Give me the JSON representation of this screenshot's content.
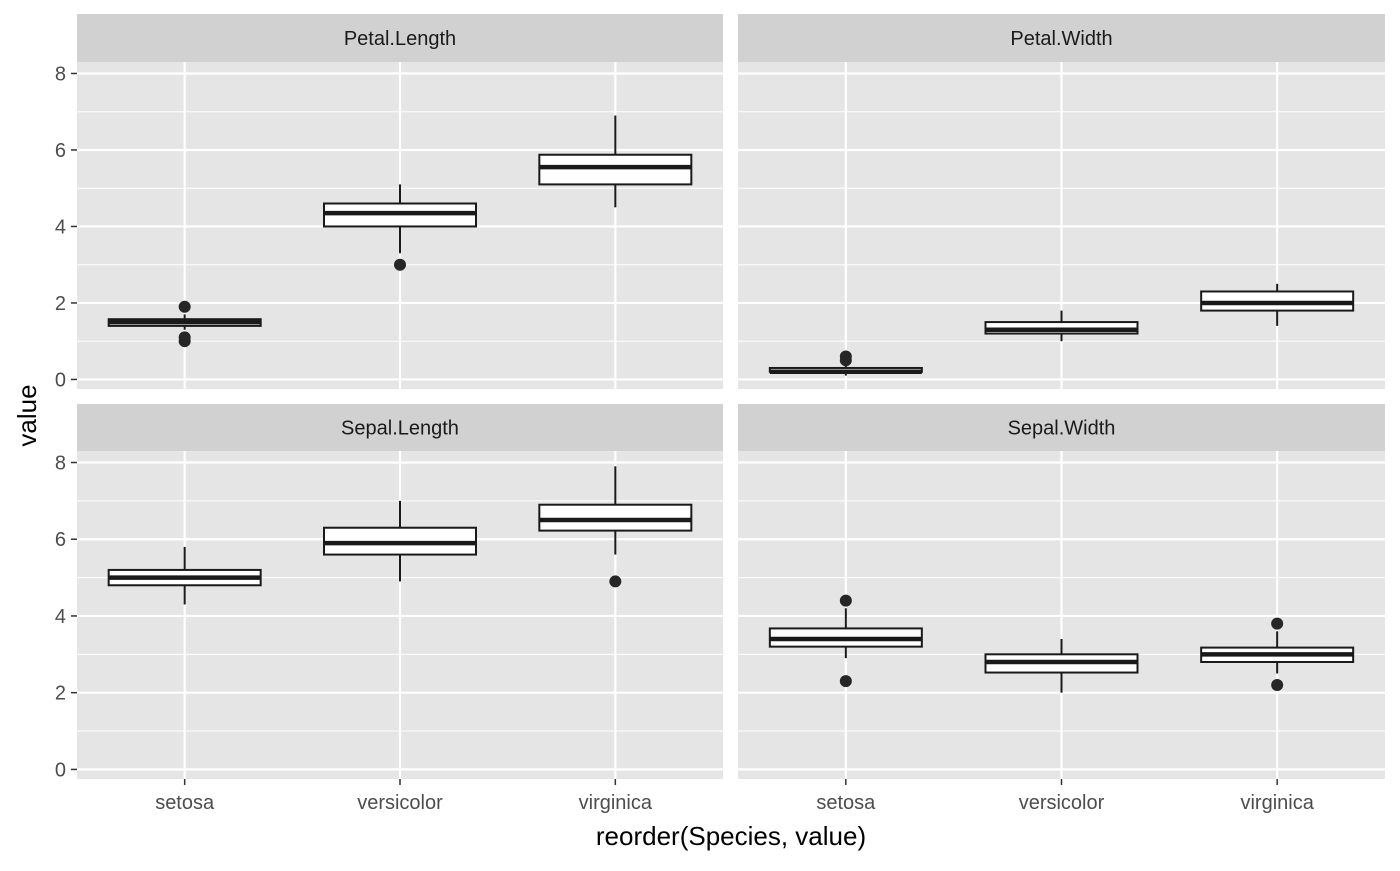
{
  "chart_data": {
    "type": "boxplot",
    "facet_layout": "2x2 grid, shared axes",
    "xlabel": "reorder(Species, value)",
    "ylabel": "value",
    "categories": [
      "setosa",
      "versicolor",
      "virginica"
    ],
    "ylim": [
      -0.25,
      8.3
    ],
    "yticks": [
      0,
      2,
      4,
      6,
      8
    ],
    "grid": true,
    "colors": {
      "panel_background": "#e5e5e5",
      "strip_background": "#d1d1d1",
      "grid": "#ffffff",
      "box_fill": "#ffffff",
      "box_line": "#1a1a1a",
      "outlier": "#262626"
    },
    "panels": [
      {
        "facet": "Petal.Length",
        "boxes": [
          {
            "category": "setosa",
            "lower_whisker": 1.3,
            "q1": 1.4,
            "median": 1.5,
            "q3": 1.575,
            "upper_whisker": 1.7,
            "outliers": [
              1.0,
              1.1,
              1.9
            ]
          },
          {
            "category": "versicolor",
            "lower_whisker": 3.3,
            "q1": 4.0,
            "median": 4.35,
            "q3": 4.6,
            "upper_whisker": 5.1,
            "outliers": [
              3.0
            ]
          },
          {
            "category": "virginica",
            "lower_whisker": 4.5,
            "q1": 5.1,
            "median": 5.55,
            "q3": 5.875,
            "upper_whisker": 6.9,
            "outliers": []
          }
        ]
      },
      {
        "facet": "Petal.Width",
        "boxes": [
          {
            "category": "setosa",
            "lower_whisker": 0.1,
            "q1": 0.2,
            "median": 0.2,
            "q3": 0.3,
            "upper_whisker": 0.4,
            "outliers": [
              0.5,
              0.6
            ]
          },
          {
            "category": "versicolor",
            "lower_whisker": 1.0,
            "q1": 1.2,
            "median": 1.3,
            "q3": 1.5,
            "upper_whisker": 1.8,
            "outliers": []
          },
          {
            "category": "virginica",
            "lower_whisker": 1.4,
            "q1": 1.8,
            "median": 2.0,
            "q3": 2.3,
            "upper_whisker": 2.5,
            "outliers": []
          }
        ]
      },
      {
        "facet": "Sepal.Length",
        "boxes": [
          {
            "category": "setosa",
            "lower_whisker": 4.3,
            "q1": 4.8,
            "median": 5.0,
            "q3": 5.2,
            "upper_whisker": 5.8,
            "outliers": []
          },
          {
            "category": "versicolor",
            "lower_whisker": 4.9,
            "q1": 5.6,
            "median": 5.9,
            "q3": 6.3,
            "upper_whisker": 7.0,
            "outliers": []
          },
          {
            "category": "virginica",
            "lower_whisker": 5.6,
            "q1": 6.225,
            "median": 6.5,
            "q3": 6.9,
            "upper_whisker": 7.9,
            "outliers": [
              4.9
            ]
          }
        ]
      },
      {
        "facet": "Sepal.Width",
        "boxes": [
          {
            "category": "setosa",
            "lower_whisker": 2.9,
            "q1": 3.2,
            "median": 3.4,
            "q3": 3.675,
            "upper_whisker": 4.2,
            "outliers": [
              2.3,
              4.4
            ]
          },
          {
            "category": "versicolor",
            "lower_whisker": 2.0,
            "q1": 2.525,
            "median": 2.8,
            "q3": 3.0,
            "upper_whisker": 3.4,
            "outliers": []
          },
          {
            "category": "virginica",
            "lower_whisker": 2.5,
            "q1": 2.8,
            "median": 3.0,
            "q3": 3.175,
            "upper_whisker": 3.6,
            "outliers": [
              2.2,
              3.8
            ]
          }
        ]
      }
    ]
  }
}
